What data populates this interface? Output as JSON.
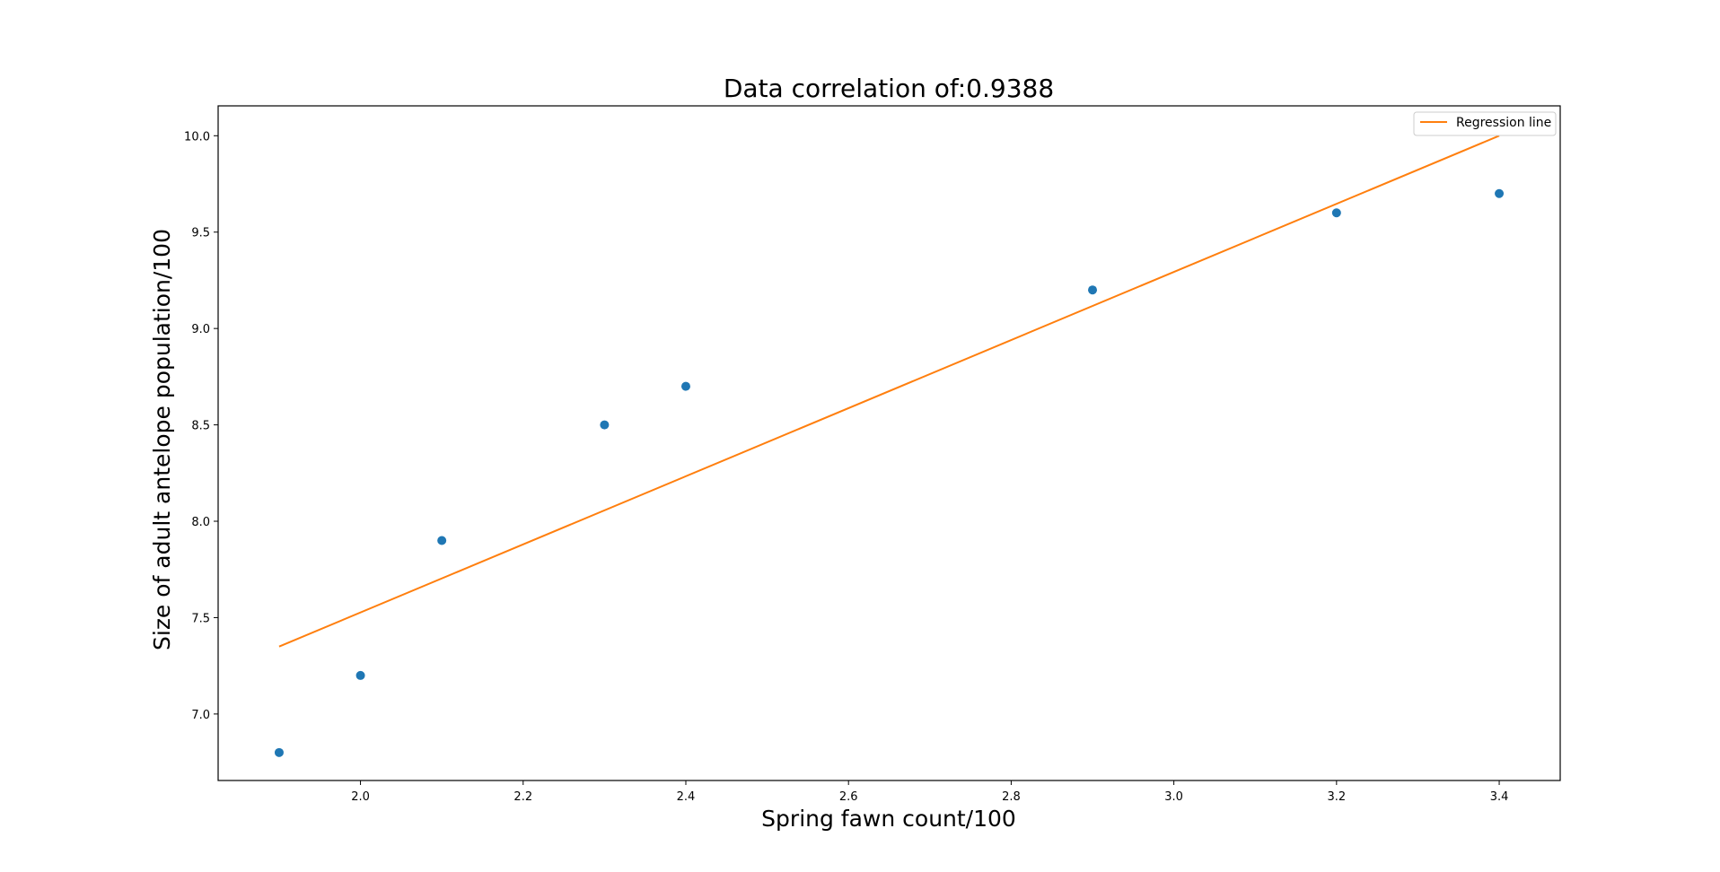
{
  "chart_data": {
    "type": "scatter",
    "title": "Data correlation of:0.9388",
    "xlabel": "Spring fawn count/100",
    "ylabel": "Size of adult antelope population/100",
    "xlim": [
      1.825,
      3.475
    ],
    "ylim": [
      6.655,
      10.155
    ],
    "xticks": [
      2.0,
      2.2,
      2.4,
      2.6,
      2.8,
      3.0,
      3.2,
      3.4
    ],
    "xtick_labels": [
      "2.0",
      "2.2",
      "2.4",
      "2.6",
      "2.8",
      "3.0",
      "3.2",
      "3.4"
    ],
    "yticks": [
      7.0,
      7.5,
      8.0,
      8.5,
      9.0,
      9.5,
      10.0
    ],
    "ytick_labels": [
      "7.0",
      "7.5",
      "8.0",
      "8.5",
      "9.0",
      "9.5",
      "10.0"
    ],
    "grid": false,
    "legend": {
      "position": "top-right",
      "entries": [
        "Regression line"
      ]
    },
    "colors": {
      "points": "#1f77b4",
      "line": "#ff7f0e",
      "axes": "#000000"
    },
    "series": [
      {
        "type": "scatter",
        "x": [
          1.9,
          2.0,
          2.1,
          2.3,
          2.4,
          2.9,
          3.2,
          3.4
        ],
        "y": [
          6.8,
          7.2,
          7.9,
          8.5,
          8.7,
          9.2,
          9.6,
          9.7
        ]
      },
      {
        "type": "line",
        "name": "Regression line",
        "x": [
          1.9,
          3.4
        ],
        "y": [
          7.35,
          10.0
        ]
      }
    ]
  }
}
